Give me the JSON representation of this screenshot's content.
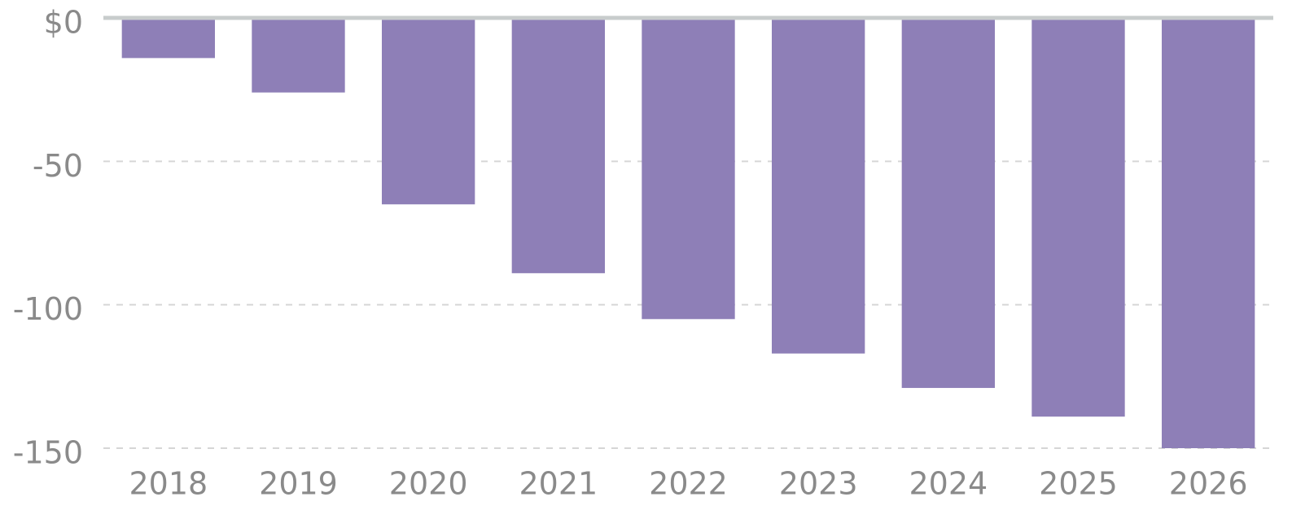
{
  "chart_data": {
    "type": "bar",
    "categories": [
      "2018",
      "2019",
      "2020",
      "2021",
      "2022",
      "2023",
      "2024",
      "2025",
      "2026"
    ],
    "values": [
      -14,
      -26,
      -65,
      -89,
      -105,
      -117,
      -129,
      -139,
      -150
    ],
    "color": "#8e7fb7",
    "ylim": [
      -150,
      0
    ],
    "yticks": [
      {
        "value": 0,
        "label": "$0"
      },
      -50,
      -100,
      -150
    ],
    "grid": true
  }
}
